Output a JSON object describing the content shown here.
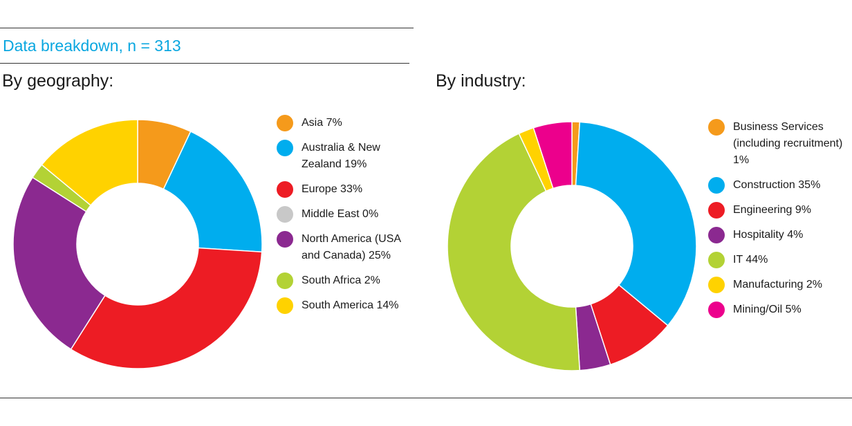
{
  "header": {
    "title": "Data breakdown, n = 313"
  },
  "chart_data": [
    {
      "type": "pie",
      "title": "By geography:",
      "categories": [
        "Asia",
        "Australia & New Zealand",
        "Europe",
        "Middle East",
        "North America (USA and Canada)",
        "South Africa",
        "South America"
      ],
      "values": [
        7,
        19,
        33,
        0,
        25,
        2,
        14
      ],
      "colors": [
        "#f59a1b",
        "#00adee",
        "#ed1c24",
        "#c8c8c8",
        "#8b2990",
        "#b3d235",
        "#ffd200"
      ],
      "legend_labels": [
        "Asia 7%",
        "Australia & New Zealand 19%",
        "Europe 33%",
        "Middle East 0%",
        "North America (USA and Canada) 25%",
        "South Africa 2%",
        "South America 14%"
      ],
      "legend_position": "right",
      "donut": true
    },
    {
      "type": "pie",
      "title": "By industry:",
      "categories": [
        "Business Services (including recruitment)",
        "Construction",
        "Engineering",
        "Hospitality",
        "IT",
        "Manufacturing",
        "Mining/Oil"
      ],
      "values": [
        1,
        35,
        9,
        4,
        44,
        2,
        5
      ],
      "colors": [
        "#f59a1b",
        "#00adee",
        "#ed1c24",
        "#8b2990",
        "#b3d235",
        "#ffd200",
        "#ec008c"
      ],
      "legend_labels": [
        "Business Services (including recruitment) 1%",
        "Construction 35%",
        "Engineering 9%",
        "Hospitality 4%",
        "IT 44%",
        "Manufacturing 2%",
        "Mining/Oil 5%"
      ],
      "legend_position": "right",
      "donut": true
    }
  ]
}
